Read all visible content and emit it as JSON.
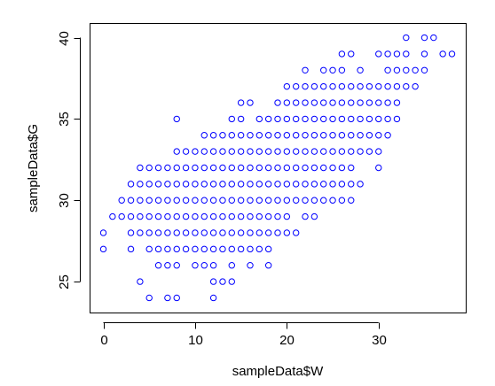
{
  "chart_data": {
    "type": "scatter",
    "xlabel": "sampleData$W",
    "ylabel": "sampleData$G",
    "xlim": [
      -1.5,
      39.5
    ],
    "ylim": [
      23.1,
      40.9
    ],
    "xticks": [
      0,
      10,
      20,
      30
    ],
    "yticks": [
      25,
      30,
      35,
      40
    ],
    "grid": false,
    "point_style": "open-circle",
    "point_color": "#0000ff",
    "points_by_y": [
      {
        "y": 24,
        "x": [
          5,
          7,
          8,
          12
        ]
      },
      {
        "y": 25,
        "x": [
          4,
          12,
          13,
          14
        ]
      },
      {
        "y": 26,
        "x": [
          6,
          7,
          8,
          10,
          11,
          12,
          14,
          16,
          18
        ]
      },
      {
        "y": 27,
        "x": [
          0,
          3,
          5,
          6,
          7,
          8,
          9,
          10,
          11,
          12,
          13,
          14,
          15,
          16,
          17,
          18
        ]
      },
      {
        "y": 28,
        "x": [
          0,
          3,
          4,
          5,
          6,
          7,
          8,
          9,
          10,
          11,
          12,
          13,
          14,
          15,
          16,
          17,
          18,
          19,
          20,
          21
        ]
      },
      {
        "y": 29,
        "x": [
          1,
          2,
          3,
          4,
          5,
          6,
          7,
          8,
          9,
          10,
          11,
          12,
          13,
          14,
          15,
          16,
          17,
          18,
          19,
          20,
          22,
          23
        ]
      },
      {
        "y": 30,
        "x": [
          2,
          3,
          4,
          5,
          6,
          7,
          8,
          9,
          10,
          11,
          12,
          13,
          14,
          15,
          16,
          17,
          18,
          19,
          20,
          21,
          22,
          23,
          24,
          25,
          26,
          27
        ]
      },
      {
        "y": 31,
        "x": [
          3,
          4,
          5,
          6,
          7,
          8,
          9,
          10,
          11,
          12,
          13,
          14,
          15,
          16,
          17,
          18,
          19,
          20,
          21,
          22,
          23,
          24,
          25,
          26,
          27,
          28
        ]
      },
      {
        "y": 32,
        "x": [
          4,
          5,
          6,
          7,
          8,
          9,
          10,
          11,
          12,
          13,
          14,
          15,
          16,
          17,
          18,
          19,
          20,
          21,
          22,
          23,
          24,
          25,
          26,
          27,
          30
        ]
      },
      {
        "y": 33,
        "x": [
          8,
          9,
          10,
          11,
          12,
          13,
          14,
          15,
          16,
          17,
          18,
          19,
          20,
          21,
          22,
          23,
          24,
          25,
          26,
          27,
          28,
          29,
          30
        ]
      },
      {
        "y": 34,
        "x": [
          11,
          12,
          13,
          14,
          15,
          16,
          17,
          18,
          19,
          20,
          21,
          22,
          23,
          24,
          25,
          26,
          27,
          28,
          29,
          30,
          31
        ]
      },
      {
        "y": 35,
        "x": [
          8,
          14,
          15,
          17,
          18,
          19,
          20,
          21,
          22,
          23,
          24,
          25,
          26,
          27,
          28,
          29,
          30,
          31,
          32
        ]
      },
      {
        "y": 36,
        "x": [
          15,
          16,
          19,
          20,
          21,
          22,
          23,
          24,
          25,
          26,
          27,
          28,
          29,
          30,
          31,
          32
        ]
      },
      {
        "y": 37,
        "x": [
          20,
          21,
          22,
          23,
          24,
          25,
          26,
          27,
          28,
          29,
          30,
          31,
          32,
          33,
          34
        ]
      },
      {
        "y": 38,
        "x": [
          22,
          24,
          25,
          26,
          28,
          31,
          32,
          33,
          34,
          35
        ]
      },
      {
        "y": 39,
        "x": [
          26,
          27,
          30,
          31,
          32,
          33,
          35,
          37,
          38
        ]
      },
      {
        "y": 40,
        "x": [
          33,
          35,
          36
        ]
      }
    ]
  }
}
